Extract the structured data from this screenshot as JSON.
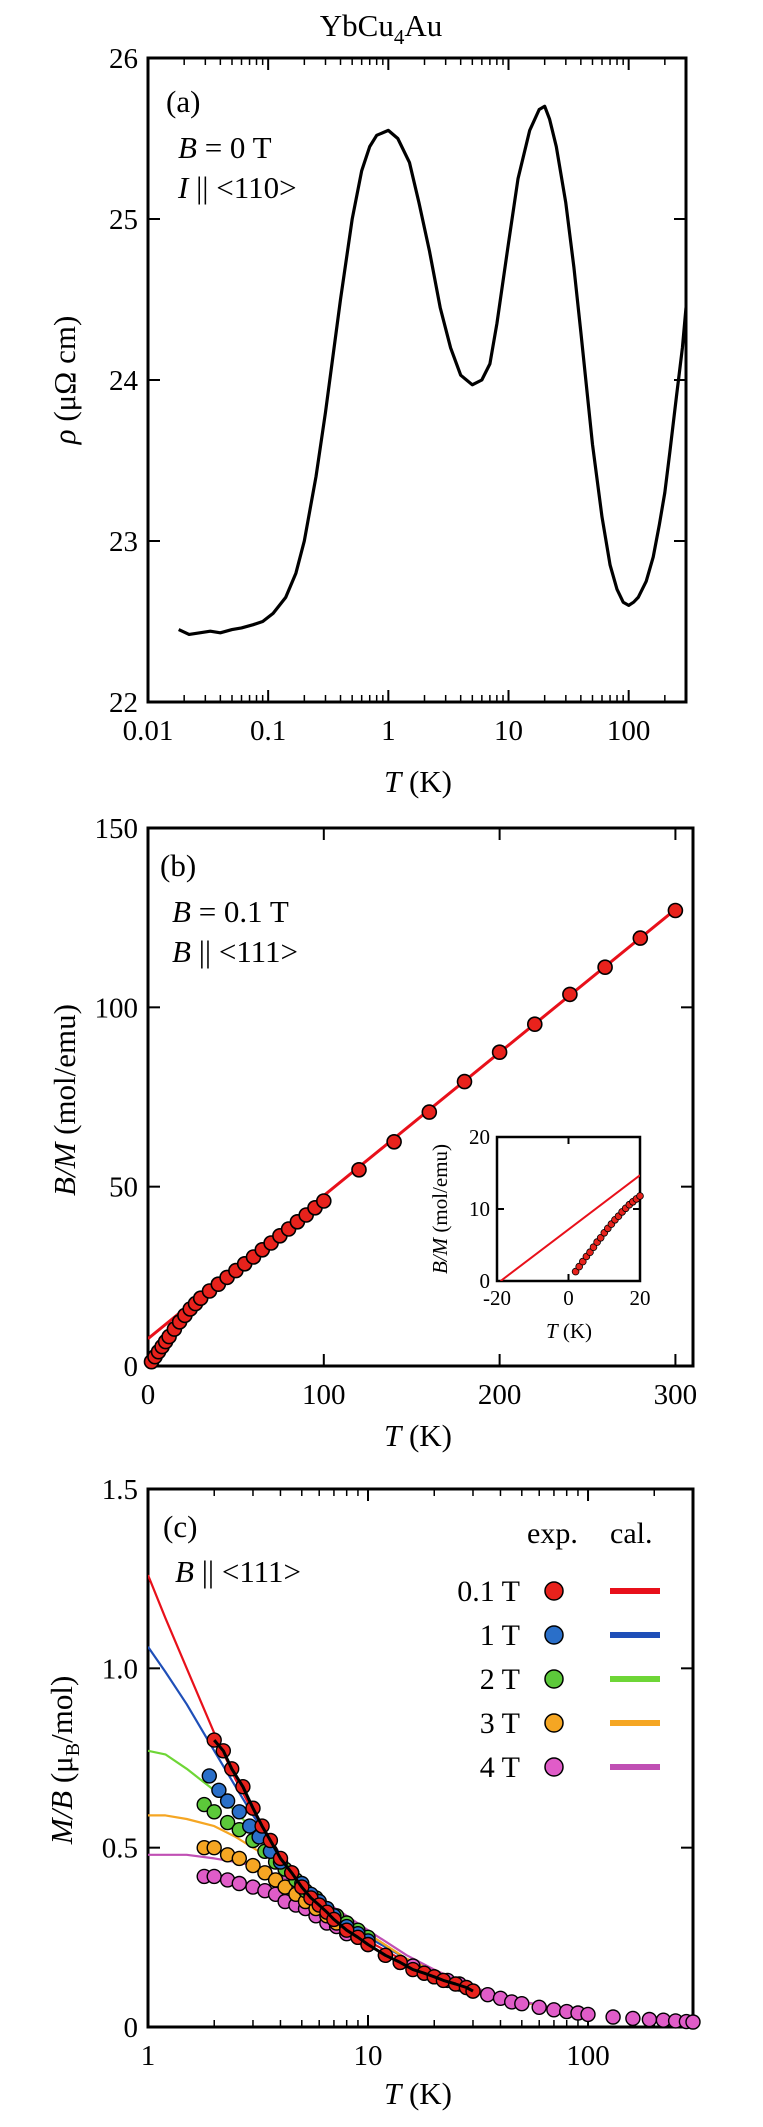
{
  "figure_title": {
    "main": "YbCu",
    "sub": "4",
    "tail": "Au"
  },
  "chart_data": [
    {
      "panel": "a",
      "type": "line",
      "title": "YbCu4Au",
      "panel_label": "(a)",
      "annotations": [
        {
          "v": "B",
          "eq": " = 0 T"
        },
        {
          "v": "I",
          "eq": " || <110>"
        }
      ],
      "xlabel": {
        "v": "T",
        "unit": " (K)"
      },
      "ylabel": {
        "v": "ρ",
        "unit": "  (μΩ cm)"
      },
      "xscale": "log",
      "xlim": [
        0.01,
        300
      ],
      "ylim": [
        22,
        26
      ],
      "xticks": [
        {
          "value": 0.01,
          "label": "0.01"
        },
        {
          "value": 0.1,
          "label": "0.1"
        },
        {
          "value": 1,
          "label": "1"
        },
        {
          "value": 10,
          "label": "10"
        },
        {
          "value": 100,
          "label": "100"
        }
      ],
      "yticks": [
        {
          "value": 22,
          "label": "22"
        },
        {
          "value": 23,
          "label": "23"
        },
        {
          "value": 24,
          "label": "24"
        },
        {
          "value": 25,
          "label": "25"
        },
        {
          "value": 26,
          "label": "26"
        }
      ],
      "series": [
        {
          "color": "#000000",
          "x": [
            0.018,
            0.022,
            0.027,
            0.033,
            0.04,
            0.05,
            0.06,
            0.075,
            0.09,
            0.11,
            0.14,
            0.17,
            0.2,
            0.25,
            0.3,
            0.4,
            0.5,
            0.6,
            0.7,
            0.8,
            1.0,
            1.2,
            1.5,
            1.8,
            2.2,
            2.7,
            3.3,
            4.0,
            5.0,
            6.0,
            7.0,
            8.0,
            10,
            12,
            15,
            18,
            20,
            22,
            25,
            30,
            35,
            40,
            50,
            60,
            70,
            80,
            90,
            100,
            110,
            120,
            140,
            160,
            180,
            200,
            220,
            250,
            280,
            300
          ],
          "y": [
            22.45,
            22.42,
            22.43,
            22.44,
            22.43,
            22.45,
            22.46,
            22.48,
            22.5,
            22.55,
            22.65,
            22.8,
            23.0,
            23.4,
            23.8,
            24.5,
            25.0,
            25.3,
            25.45,
            25.52,
            25.55,
            25.5,
            25.35,
            25.1,
            24.8,
            24.45,
            24.2,
            24.03,
            23.97,
            24.0,
            24.1,
            24.35,
            24.85,
            25.25,
            25.55,
            25.68,
            25.7,
            25.62,
            25.45,
            25.1,
            24.7,
            24.3,
            23.6,
            23.15,
            22.85,
            22.7,
            22.62,
            22.6,
            22.62,
            22.65,
            22.75,
            22.9,
            23.1,
            23.3,
            23.55,
            23.9,
            24.2,
            24.45
          ]
        }
      ]
    },
    {
      "panel": "b",
      "type": "scatter",
      "panel_label": "(b)",
      "annotations": [
        {
          "v": "B",
          "eq": " = 0.1 T"
        },
        {
          "v": "B",
          "eq": " || <111>"
        }
      ],
      "xlabel": {
        "v": "T",
        "unit": " (K)"
      },
      "ylabel": {
        "v": "B/M",
        "unit": " (mol/emu)"
      },
      "xlim": [
        0,
        310
      ],
      "ylim": [
        0,
        150
      ],
      "xticks": [
        {
          "value": 0,
          "label": "0"
        },
        {
          "value": 100,
          "label": "100"
        },
        {
          "value": 200,
          "label": "200"
        },
        {
          "value": 300,
          "label": "300"
        }
      ],
      "yticks": [
        {
          "value": 0,
          "label": "0"
        },
        {
          "value": 50,
          "label": "50"
        },
        {
          "value": 100,
          "label": "100"
        },
        {
          "value": 150,
          "label": "150"
        }
      ],
      "fit_line": {
        "color": "#e8101a",
        "x": [
          0,
          300
        ],
        "y": [
          7.6,
          127.3
        ]
      },
      "series": [
        {
          "marker_color": "#e8221c",
          "x": [
            2,
            4,
            6,
            8,
            10,
            12,
            15,
            18,
            21,
            24,
            27,
            30,
            35,
            40,
            45,
            50,
            55,
            60,
            65,
            70,
            75,
            80,
            85,
            90,
            95,
            100,
            120,
            140,
            160,
            180,
            200,
            220,
            240,
            260,
            280,
            300
          ],
          "y": [
            1.2,
            2.6,
            4.0,
            5.4,
            6.8,
            8.2,
            10.3,
            12.3,
            14.1,
            15.9,
            17.4,
            18.9,
            20.9,
            22.8,
            24.7,
            26.6,
            28.5,
            30.4,
            32.4,
            34.3,
            36.3,
            38.2,
            40.2,
            42.1,
            44.1,
            46.0,
            54.7,
            62.5,
            70.8,
            79.3,
            87.5,
            95.3,
            103.6,
            111.2,
            119.3,
            127.0
          ]
        }
      ],
      "inset": {
        "xlabel": {
          "v": "T",
          "unit": " (K)"
        },
        "ylabel": {
          "v": "B/M",
          "unit": " (mol/emu)"
        },
        "xlim": [
          -20,
          20
        ],
        "ylim": [
          0,
          20
        ],
        "xticks": [
          {
            "value": -20,
            "label": "-20"
          },
          {
            "value": 0,
            "label": "0"
          },
          {
            "value": 20,
            "label": "20"
          }
        ],
        "yticks": [
          {
            "value": 0,
            "label": "0"
          },
          {
            "value": 10,
            "label": "10"
          },
          {
            "value": 20,
            "label": "20"
          }
        ],
        "fit_line": {
          "x": [
            -19,
            20
          ],
          "y": [
            0,
            14.7
          ]
        },
        "x": [
          2,
          3,
          4,
          5,
          6,
          7,
          8,
          9,
          10,
          11,
          12,
          13,
          14,
          15,
          16,
          17,
          18,
          19,
          20
        ],
        "y": [
          1.3,
          2.0,
          2.7,
          3.4,
          4.0,
          4.7,
          5.4,
          6.0,
          6.7,
          7.3,
          7.9,
          8.5,
          9.0,
          9.6,
          10.1,
          10.6,
          11.0,
          11.4,
          11.8
        ]
      }
    },
    {
      "panel": "c",
      "type": "scatter",
      "panel_label": "(c)",
      "annotations": [
        {
          "v": "B",
          "eq": " || <111>"
        }
      ],
      "xlabel": {
        "v": "T",
        "unit": " (K)"
      },
      "ylabel": {
        "v": "M/B",
        "unit": " (μ",
        "sub": "B",
        "tail": "/mol)"
      },
      "xscale": "log",
      "xlim": [
        1,
        300
      ],
      "ylim": [
        0,
        1.5
      ],
      "xticks": [
        {
          "value": 1,
          "label": "1"
        },
        {
          "value": 10,
          "label": "10"
        },
        {
          "value": 100,
          "label": "100"
        }
      ],
      "yticks": [
        {
          "value": 0,
          "label": "0"
        },
        {
          "value": 0.5,
          "label": "0.5"
        },
        {
          "value": 1.0,
          "label": "1.0"
        },
        {
          "value": 1.5,
          "label": "1.5"
        }
      ],
      "legend": {
        "placement": "top-right",
        "header_exp": "exp.",
        "header_cal": "cal.",
        "entries": [
          {
            "label": "0.1 T",
            "color": "#e8221c",
            "line_color": "#e8101a"
          },
          {
            "label": "1 T",
            "color": "#2a6fc9",
            "line_color": "#1f4fb8"
          },
          {
            "label": "2 T",
            "color": "#5cc93a",
            "line_color": "#6ed636"
          },
          {
            "label": "3 T",
            "color": "#f5a623",
            "line_color": "#f5a623"
          },
          {
            "label": "4 T",
            "color": "#e05cc8",
            "line_color": "#c04fb4"
          }
        ]
      },
      "exp_series": [
        {
          "field": "0.1 T",
          "x": [
            2.0,
            2.2,
            2.4,
            2.7,
            3.0,
            3.3,
            3.6,
            4.0,
            4.5,
            5.0,
            5.5,
            6.0,
            6.5,
            7.0,
            8.0,
            9.0,
            10,
            12,
            14,
            16,
            18,
            20,
            22,
            25,
            28,
            30
          ],
          "y": [
            0.8,
            0.77,
            0.72,
            0.67,
            0.61,
            0.56,
            0.52,
            0.47,
            0.43,
            0.39,
            0.36,
            0.34,
            0.32,
            0.3,
            0.27,
            0.25,
            0.23,
            0.2,
            0.18,
            0.16,
            0.15,
            0.14,
            0.13,
            0.12,
            0.11,
            0.1
          ]
        },
        {
          "field": "1 T",
          "x": [
            1.9,
            2.1,
            2.3,
            2.6,
            2.9,
            3.2,
            3.6,
            4.0,
            4.5,
            5.0,
            5.5,
            6.0,
            6.5,
            7.0,
            8.0,
            9.0,
            10
          ],
          "y": [
            0.7,
            0.66,
            0.63,
            0.6,
            0.56,
            0.53,
            0.49,
            0.46,
            0.43,
            0.4,
            0.37,
            0.35,
            0.33,
            0.31,
            0.28,
            0.26,
            0.24
          ]
        },
        {
          "field": "2 T",
          "x": [
            1.8,
            2.0,
            2.3,
            2.6,
            3.0,
            3.4,
            3.8,
            4.2,
            4.7,
            5.2,
            5.8,
            6.5,
            7.2,
            8.0,
            9.0,
            10
          ],
          "y": [
            0.62,
            0.6,
            0.57,
            0.55,
            0.52,
            0.49,
            0.46,
            0.44,
            0.41,
            0.38,
            0.36,
            0.33,
            0.31,
            0.29,
            0.27,
            0.25
          ]
        },
        {
          "field": "3 T",
          "x": [
            1.8,
            2.0,
            2.3,
            2.6,
            3.0,
            3.4,
            3.8,
            4.2,
            4.7,
            5.2,
            5.8,
            6.5,
            7.2,
            8.0,
            9.0,
            10
          ],
          "y": [
            0.5,
            0.5,
            0.48,
            0.47,
            0.45,
            0.43,
            0.41,
            0.39,
            0.37,
            0.35,
            0.33,
            0.31,
            0.29,
            0.28,
            0.26,
            0.24
          ]
        },
        {
          "field": "4 T",
          "x": [
            1.8,
            2.0,
            2.3,
            2.6,
            3.0,
            3.4,
            3.8,
            4.2,
            4.7,
            5.2,
            5.8,
            6.5,
            7.2,
            8.0,
            9.0,
            10,
            12,
            14,
            16,
            18,
            20,
            23,
            26,
            30,
            35,
            40,
            45,
            50,
            60,
            70,
            80,
            90,
            100,
            130,
            160,
            190,
            220,
            250,
            280,
            300
          ],
          "y": [
            0.42,
            0.42,
            0.41,
            0.4,
            0.39,
            0.38,
            0.37,
            0.35,
            0.34,
            0.33,
            0.31,
            0.29,
            0.28,
            0.26,
            0.25,
            0.23,
            0.2,
            0.18,
            0.17,
            0.15,
            0.14,
            0.13,
            0.12,
            0.1,
            0.09,
            0.08,
            0.07,
            0.065,
            0.055,
            0.048,
            0.043,
            0.039,
            0.035,
            0.028,
            0.024,
            0.021,
            0.019,
            0.017,
            0.015,
            0.014
          ]
        }
      ],
      "cal_series": [
        {
          "field": "0.1 T",
          "x": [
            1.0,
            1.2,
            1.5,
            2.0,
            2.5,
            3.0,
            4.0,
            5.0,
            6.0,
            8.0,
            10,
            15,
            20,
            30,
            50,
            70,
            100
          ],
          "y": [
            1.26,
            1.14,
            1.0,
            0.82,
            0.69,
            0.6,
            0.48,
            0.4,
            0.35,
            0.28,
            0.24,
            0.18,
            0.15,
            0.11,
            0.07,
            0.052,
            0.038
          ]
        },
        {
          "field": "1 T",
          "x": [
            1.0,
            1.2,
            1.5,
            2.0,
            2.5,
            3.0,
            4.0,
            5.0,
            6.0,
            8.0,
            10,
            15,
            20,
            30,
            50,
            70,
            100
          ],
          "y": [
            1.06,
            0.99,
            0.9,
            0.77,
            0.67,
            0.59,
            0.48,
            0.41,
            0.36,
            0.29,
            0.25,
            0.19,
            0.15,
            0.11,
            0.07,
            0.052,
            0.038
          ]
        },
        {
          "field": "2 T",
          "x": [
            1.0,
            1.2,
            1.5,
            2.0,
            2.5,
            3.0,
            4.0,
            5.0,
            6.0,
            8.0,
            10,
            15,
            20,
            30,
            50,
            70,
            100
          ],
          "y": [
            0.77,
            0.76,
            0.72,
            0.66,
            0.6,
            0.55,
            0.47,
            0.41,
            0.36,
            0.3,
            0.26,
            0.19,
            0.15,
            0.11,
            0.07,
            0.052,
            0.038
          ]
        },
        {
          "field": "3 T",
          "x": [
            1.0,
            1.2,
            1.5,
            2.0,
            2.5,
            3.0,
            4.0,
            5.0,
            6.0,
            8.0,
            10,
            15,
            20,
            30,
            50,
            70,
            100
          ],
          "y": [
            0.59,
            0.59,
            0.58,
            0.56,
            0.53,
            0.5,
            0.45,
            0.4,
            0.36,
            0.3,
            0.26,
            0.19,
            0.16,
            0.11,
            0.07,
            0.052,
            0.038
          ]
        },
        {
          "field": "4 T",
          "x": [
            1.0,
            1.2,
            1.5,
            2.0,
            2.5,
            3.0,
            4.0,
            5.0,
            6.0,
            8.0,
            10,
            15,
            20,
            30,
            50,
            70,
            100
          ],
          "y": [
            0.48,
            0.48,
            0.48,
            0.47,
            0.46,
            0.45,
            0.42,
            0.39,
            0.36,
            0.31,
            0.27,
            0.2,
            0.16,
            0.11,
            0.072,
            0.053,
            0.038
          ]
        }
      ]
    }
  ]
}
